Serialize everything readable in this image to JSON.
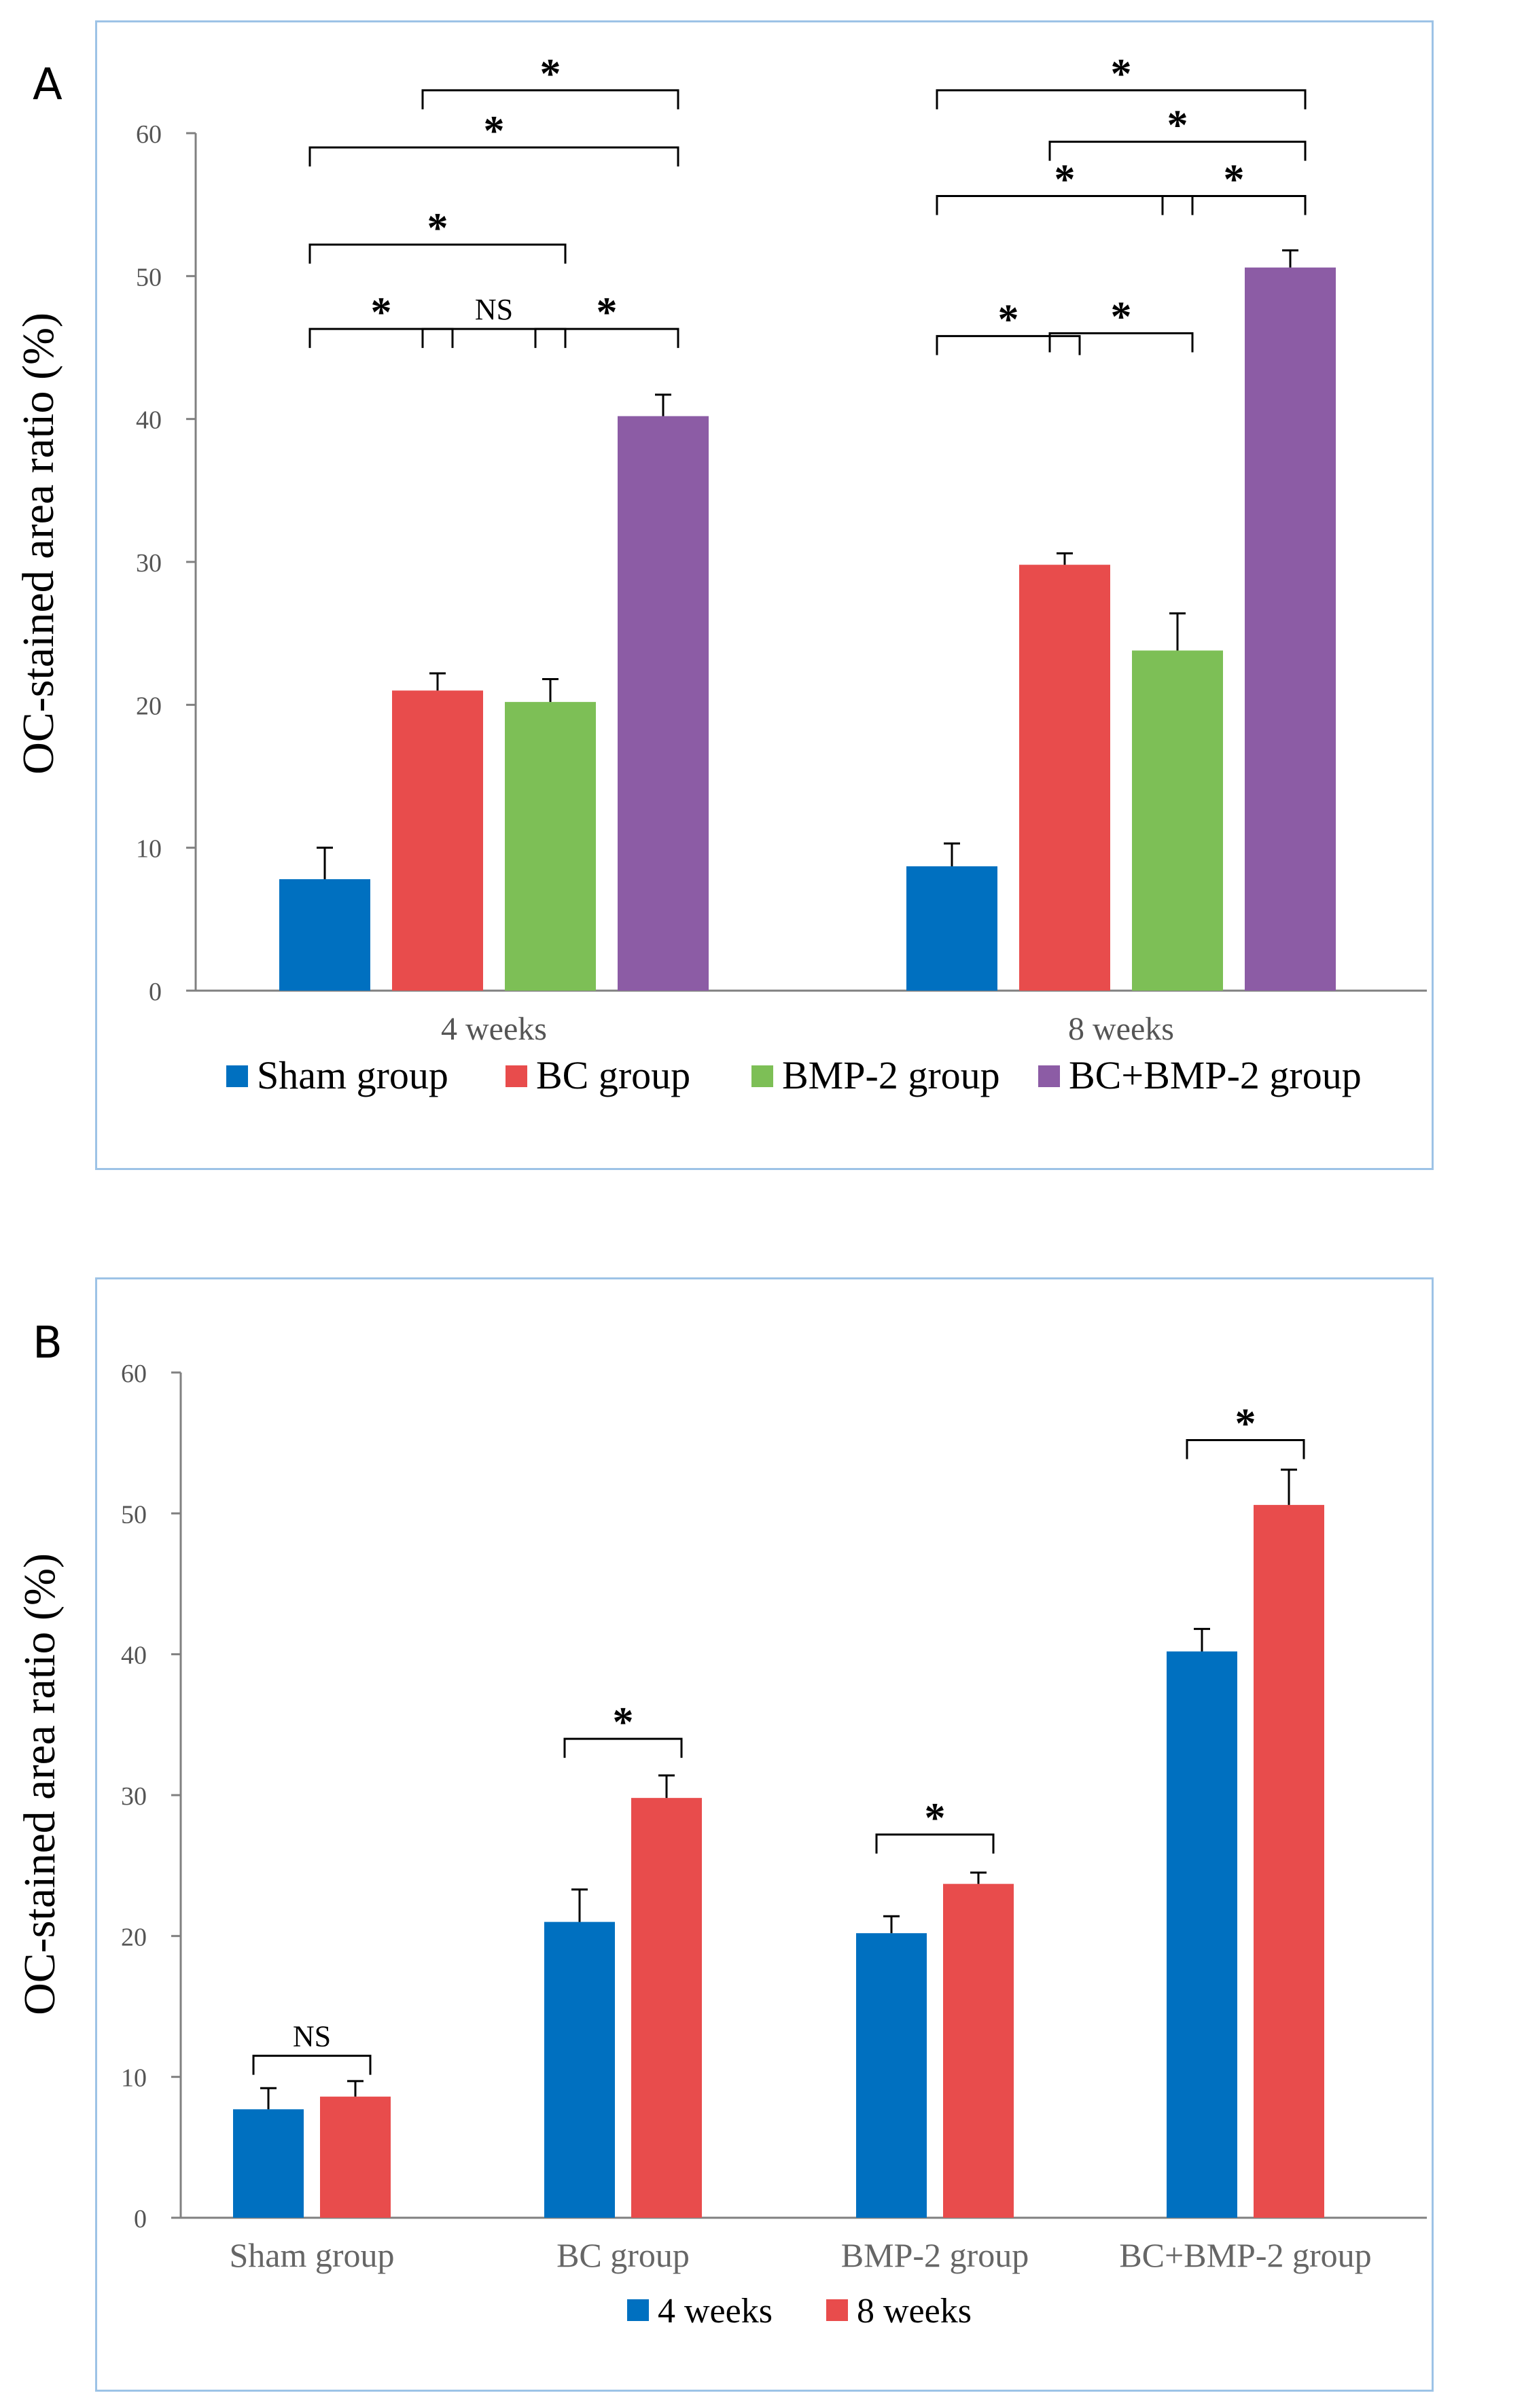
{
  "colors": {
    "sham": "#0070c0",
    "bc": "#e84c4c",
    "bmp2": "#7dbf56",
    "bcbmp2": "#8c5ca5",
    "weeks4": "#0070c0",
    "weeks8": "#e84c4c",
    "axis": "#808080",
    "tick_text": "#555555"
  },
  "chart_data": [
    {
      "panel_label": "A",
      "type": "bar",
      "ylabel": "OC-stained area ratio (%)",
      "ylim": [
        0,
        60
      ],
      "yticks": [
        "0",
        "10",
        "20",
        "30",
        "40",
        "50",
        "60"
      ],
      "categories": [
        "4 weeks",
        "8 weeks"
      ],
      "series": [
        {
          "name": "Sham group",
          "color_key": "sham",
          "values": [
            7.8,
            8.7
          ],
          "errors": [
            2.2,
            1.6
          ]
        },
        {
          "name": "BC group",
          "color_key": "bc",
          "values": [
            21.0,
            29.8
          ],
          "errors": [
            1.2,
            0.8
          ]
        },
        {
          "name": "BMP-2 group",
          "color_key": "bmp2",
          "values": [
            20.2,
            23.8
          ],
          "errors": [
            1.6,
            2.6
          ]
        },
        {
          "name": "BC+BMP-2 group",
          "color_key": "bcbmp2",
          "values": [
            40.2,
            50.6
          ],
          "errors": [
            1.5,
            1.2
          ]
        }
      ],
      "legend_position": "bottom",
      "annotations": [
        {
          "cat": 0,
          "from": 0,
          "to": 1,
          "level": 46.3,
          "label": "*"
        },
        {
          "cat": 0,
          "from": 1,
          "to": 2,
          "level": 46.3,
          "label": "NS"
        },
        {
          "cat": 0,
          "from": 2,
          "to": 3,
          "level": 46.3,
          "label": "*"
        },
        {
          "cat": 0,
          "from": 0,
          "to": 2,
          "level": 52.2,
          "label": "*"
        },
        {
          "cat": 0,
          "from": 0,
          "to": 3,
          "level": 59.0,
          "label": "*"
        },
        {
          "cat": 0,
          "from": 1,
          "to": 3,
          "level": 63.0,
          "label": "*"
        },
        {
          "cat": 1,
          "from": 0,
          "to": 1,
          "level": 45.8,
          "label": "*"
        },
        {
          "cat": 1,
          "from": 1,
          "to": 2,
          "level": 46.0,
          "label": "*"
        },
        {
          "cat": 1,
          "from": 0,
          "to": 2,
          "level": 55.6,
          "label": "*"
        },
        {
          "cat": 1,
          "from": 2,
          "to": 3,
          "level": 55.6,
          "label": "*"
        },
        {
          "cat": 1,
          "from": 1,
          "to": 3,
          "level": 59.4,
          "label": "*"
        },
        {
          "cat": 1,
          "from": 0,
          "to": 3,
          "level": 63.0,
          "label": "*"
        }
      ]
    },
    {
      "panel_label": "B",
      "type": "bar",
      "ylabel": "OC-stained area ratio (%)",
      "ylim": [
        0,
        60
      ],
      "yticks": [
        "0",
        "10",
        "20",
        "30",
        "40",
        "50",
        "60"
      ],
      "categories": [
        "Sham group",
        "BC group",
        "BMP-2 group",
        "BC+BMP-2 group"
      ],
      "series": [
        {
          "name": "4 weeks",
          "color_key": "weeks4",
          "values": [
            7.7,
            21.0,
            20.2,
            40.2
          ],
          "errors": [
            1.5,
            2.3,
            1.2,
            1.6
          ]
        },
        {
          "name": "8 weeks",
          "color_key": "weeks8",
          "values": [
            8.6,
            29.8,
            23.7,
            50.6
          ],
          "errors": [
            1.1,
            1.6,
            0.8,
            2.5
          ]
        }
      ],
      "legend_position": "bottom",
      "annotations": [
        {
          "cat": 0,
          "from": 0,
          "to": 1,
          "level": 11.5,
          "label": "NS"
        },
        {
          "cat": 1,
          "from": 0,
          "to": 1,
          "level": 34.0,
          "label": "*"
        },
        {
          "cat": 2,
          "from": 0,
          "to": 1,
          "level": 27.2,
          "label": "*"
        },
        {
          "cat": 3,
          "from": 0,
          "to": 1,
          "level": 55.2,
          "label": "*"
        }
      ]
    }
  ]
}
